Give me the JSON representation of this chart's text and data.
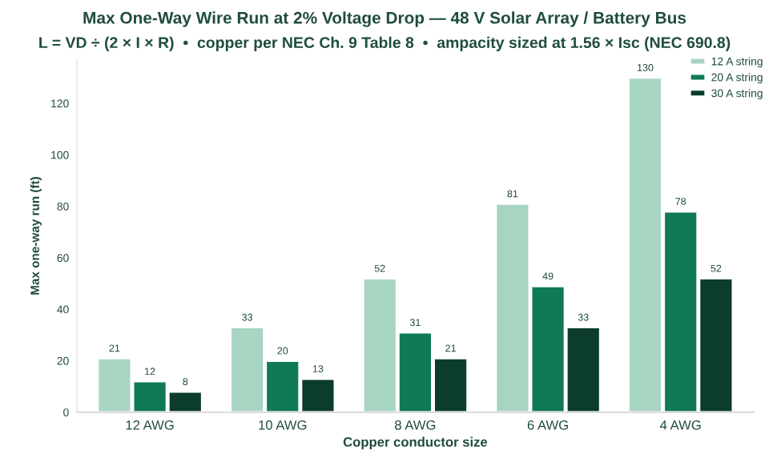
{
  "chart_data": {
    "type": "bar",
    "title": "Max One-Way Wire Run at 2% Voltage Drop — 48 V Solar Array / Battery Bus",
    "subtitle": "L = VD ÷ (2 × I × R)  •  copper per NEC Ch. 9 Table 8  •  ampacity sized at 1.56 × Isc (NEC 690.8)",
    "xlabel": "Copper conductor size",
    "ylabel": "Max one-way run (ft)",
    "categories": [
      "12 AWG",
      "10 AWG",
      "8 AWG",
      "6 AWG",
      "4 AWG"
    ],
    "series": [
      {
        "name": "12 A string",
        "color": "#a8d5c2",
        "values": [
          21,
          33,
          52,
          81,
          130
        ]
      },
      {
        "name": "20 A string",
        "color": "#0f7a55",
        "values": [
          12,
          20,
          31,
          49,
          78
        ]
      },
      {
        "name": "30 A string",
        "color": "#0b3d2a",
        "values": [
          8,
          13,
          21,
          33,
          52
        ]
      }
    ],
    "ylim": [
      0,
      137
    ],
    "yticks": [
      0,
      20,
      40,
      60,
      80,
      100,
      120
    ],
    "grid": false,
    "legend": "top right",
    "data_labels": true
  }
}
